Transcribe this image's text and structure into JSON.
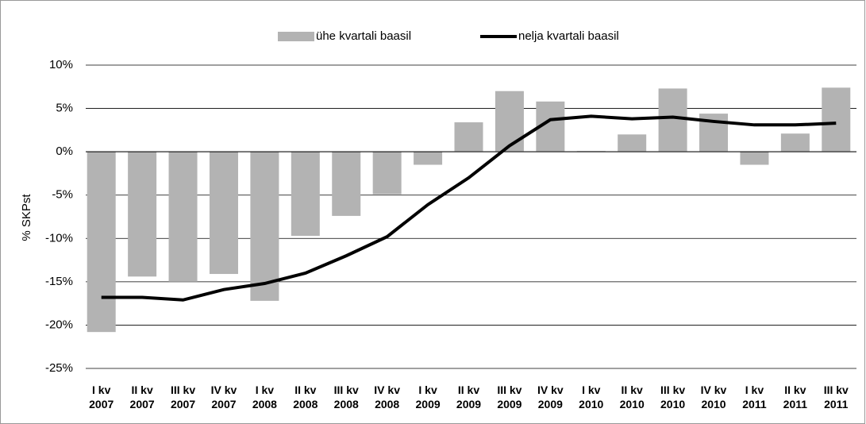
{
  "chart_data": {
    "type": "bar_line",
    "y_label": "% SKPst",
    "categories": [
      "I kv\n2007",
      "II kv\n2007",
      "III kv\n2007",
      "IV kv\n2007",
      "I kv\n2008",
      "II kv\n2008",
      "III kv\n2008",
      "IV kv\n2008",
      "I kv\n2009",
      "II kv\n2009",
      "III kv\n2009",
      "IV kv\n2009",
      "I kv\n2010",
      "II kv\n2010",
      "III kv\n2010",
      "IV kv\n2010",
      "I kv\n2011",
      "II kv\n2011",
      "III kv\n2011"
    ],
    "series": [
      {
        "name": "ühe kvartali baasil",
        "type": "bar",
        "color": "#b3b3b3",
        "values": [
          -20.8,
          -14.4,
          -15.0,
          -14.1,
          -17.2,
          -9.7,
          -7.4,
          -4.9,
          -1.5,
          3.4,
          7.0,
          5.8,
          0.1,
          2.0,
          7.3,
          4.4,
          -1.5,
          2.1,
          7.4
        ]
      },
      {
        "name": "nelja kvartali baasil",
        "type": "line",
        "color": "#000000",
        "values": [
          -16.8,
          -16.8,
          -17.1,
          -15.9,
          -15.2,
          -14.0,
          -12.0,
          -9.8,
          -6.1,
          -3.0,
          0.7,
          3.7,
          4.1,
          3.8,
          4.0,
          3.5,
          3.1,
          3.1,
          3.3
        ]
      }
    ],
    "ylim": [
      -25,
      10
    ],
    "yticks": [
      {
        "value": 10,
        "label": "10%"
      },
      {
        "value": 5,
        "label": "5%"
      },
      {
        "value": 0,
        "label": "0%"
      },
      {
        "value": -5,
        "label": "-5%"
      },
      {
        "value": -10,
        "label": "-10%"
      },
      {
        "value": -15,
        "label": "-15%"
      },
      {
        "value": -20,
        "label": "-20%"
      },
      {
        "value": -25,
        "label": "-25%"
      }
    ],
    "grid": true
  }
}
